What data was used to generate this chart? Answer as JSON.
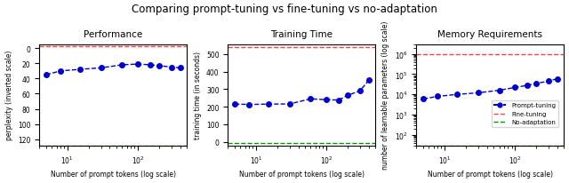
{
  "title": "Comparing prompt-tuning vs fine-tuning vs no-adaptation",
  "subplot_titles": [
    "Performance",
    "Training Time",
    "Memory Requirements"
  ],
  "xlabel": "Number of prompt tokens (log scale)",
  "prompt_x": [
    5,
    8,
    15,
    30,
    60,
    100,
    150,
    200,
    300,
    400
  ],
  "perf_y": [
    35,
    30,
    28,
    26,
    22,
    21,
    22,
    23,
    25,
    26
  ],
  "perf_ylabel": "perplexity (inverted scale)",
  "perf_ylim": [
    128,
    -5
  ],
  "perf_yticks": [
    0,
    20,
    40,
    60,
    80,
    100,
    120
  ],
  "perf_ft_hline": -2,
  "perf_noadapt_hline": 128,
  "time_y": [
    215,
    213,
    215,
    216,
    245,
    240,
    238,
    265,
    290,
    350
  ],
  "time_ylabel": "training time (in seconds)",
  "time_ylim": [
    -20,
    555
  ],
  "time_yticks": [
    0,
    100,
    200,
    300,
    400,
    500
  ],
  "time_ft_hline": 540,
  "time_noadapt_hline": -5,
  "mem_x": [
    5,
    8,
    15,
    30,
    60,
    100,
    150,
    200,
    300,
    400
  ],
  "mem_y": [
    6000,
    8000,
    10000,
    12000,
    16000,
    22000,
    28000,
    35000,
    45000,
    60000
  ],
  "mem_ylabel": "number of learnable parameters (log scale)",
  "mem_ylim_lo": 30,
  "mem_ylim_hi": 3000000,
  "mem_ft_hline": 1000000,
  "mem_noadapt_hline": 30,
  "line_color": "#0000cc",
  "ft_color": "#ff4444",
  "noadapt_color": "#009900",
  "legend_labels": [
    "Prompt-tuning",
    "Fine-tuning",
    "No-adaptation"
  ]
}
